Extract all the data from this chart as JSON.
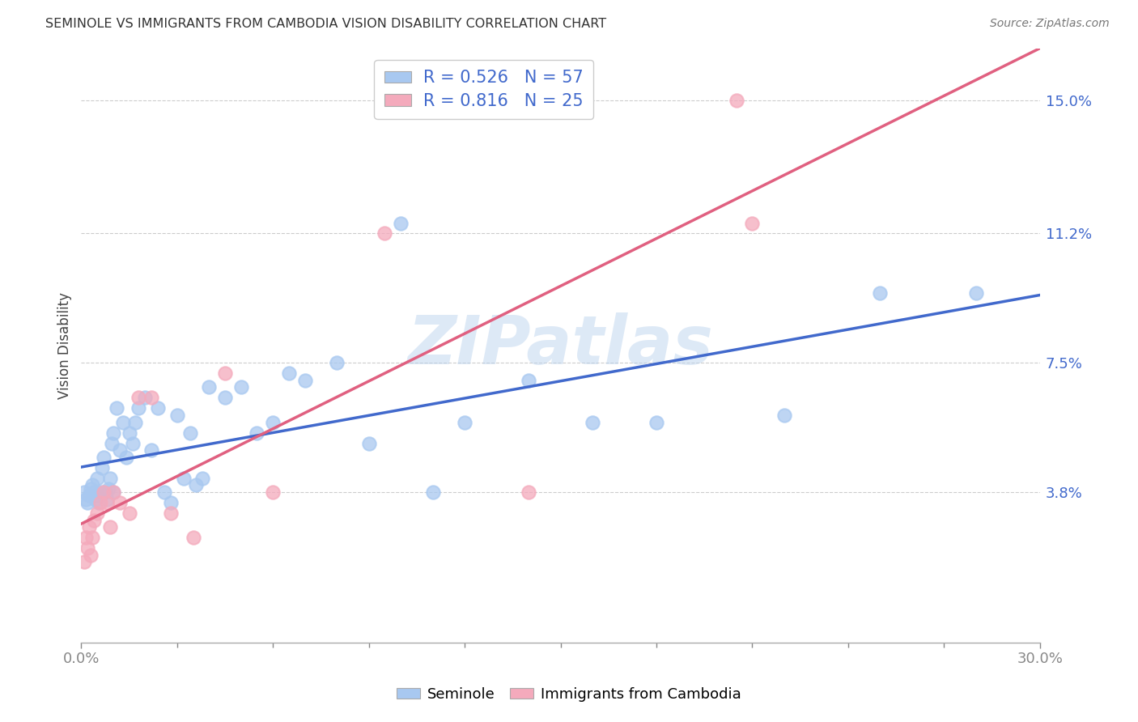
{
  "title": "SEMINOLE VS IMMIGRANTS FROM CAMBODIA VISION DISABILITY CORRELATION CHART",
  "source": "Source: ZipAtlas.com",
  "ylabel": "Vision Disability",
  "ytick_labels": [
    "3.8%",
    "7.5%",
    "11.2%",
    "15.0%"
  ],
  "ytick_values": [
    3.8,
    7.5,
    11.2,
    15.0
  ],
  "xlim": [
    0.0,
    30.0
  ],
  "ylim": [
    -0.5,
    16.5
  ],
  "watermark": "ZIPatlas",
  "blue_color": "#A8C8F0",
  "pink_color": "#F4AABC",
  "blue_line_color": "#4169CC",
  "pink_line_color": "#E06080",
  "R_blue": 0.526,
  "N_blue": 57,
  "R_pink": 0.816,
  "N_pink": 25,
  "legend_label_blue": "Seminole",
  "legend_label_pink": "Immigrants from Cambodia",
  "blue_x": [
    0.1,
    0.15,
    0.2,
    0.25,
    0.3,
    0.35,
    0.4,
    0.45,
    0.5,
    0.5,
    0.55,
    0.6,
    0.65,
    0.7,
    0.75,
    0.8,
    0.85,
    0.9,
    0.95,
    1.0,
    1.0,
    1.1,
    1.2,
    1.3,
    1.4,
    1.5,
    1.6,
    1.7,
    1.8,
    2.0,
    2.2,
    2.4,
    2.6,
    2.8,
    3.0,
    3.2,
    3.4,
    3.6,
    3.8,
    4.0,
    4.5,
    5.0,
    5.5,
    6.0,
    6.5,
    7.0,
    8.0,
    9.0,
    10.0,
    11.0,
    12.0,
    14.0,
    16.0,
    18.0,
    22.0,
    25.0,
    28.0
  ],
  "blue_y": [
    3.8,
    3.6,
    3.5,
    3.7,
    3.9,
    4.0,
    3.8,
    3.6,
    3.7,
    4.2,
    3.5,
    3.8,
    4.5,
    4.8,
    3.8,
    3.6,
    3.9,
    4.2,
    5.2,
    5.5,
    3.8,
    6.2,
    5.0,
    5.8,
    4.8,
    5.5,
    5.2,
    5.8,
    6.2,
    6.5,
    5.0,
    6.2,
    3.8,
    3.5,
    6.0,
    4.2,
    5.5,
    4.0,
    4.2,
    6.8,
    6.5,
    6.8,
    5.5,
    5.8,
    7.2,
    7.0,
    7.5,
    5.2,
    11.5,
    3.8,
    5.8,
    7.0,
    5.8,
    5.8,
    6.0,
    9.5,
    9.5
  ],
  "pink_x": [
    0.1,
    0.15,
    0.2,
    0.25,
    0.3,
    0.35,
    0.4,
    0.5,
    0.6,
    0.7,
    0.8,
    0.9,
    1.0,
    1.2,
    1.5,
    1.8,
    2.2,
    2.8,
    3.5,
    4.5,
    6.0,
    9.5,
    14.0,
    20.5,
    21.0
  ],
  "pink_y": [
    1.8,
    2.5,
    2.2,
    2.8,
    2.0,
    2.5,
    3.0,
    3.2,
    3.5,
    3.8,
    3.5,
    2.8,
    3.8,
    3.5,
    3.2,
    6.5,
    6.5,
    3.2,
    2.5,
    7.2,
    3.8,
    11.2,
    3.8,
    15.0,
    11.5
  ],
  "background_color": "#FFFFFF",
  "plot_bg_color": "#FFFFFF",
  "grid_color": "#CCCCCC",
  "xtick_minor": [
    3.0,
    6.0,
    9.0,
    12.0,
    15.0,
    18.0,
    21.0,
    24.0,
    27.0
  ]
}
